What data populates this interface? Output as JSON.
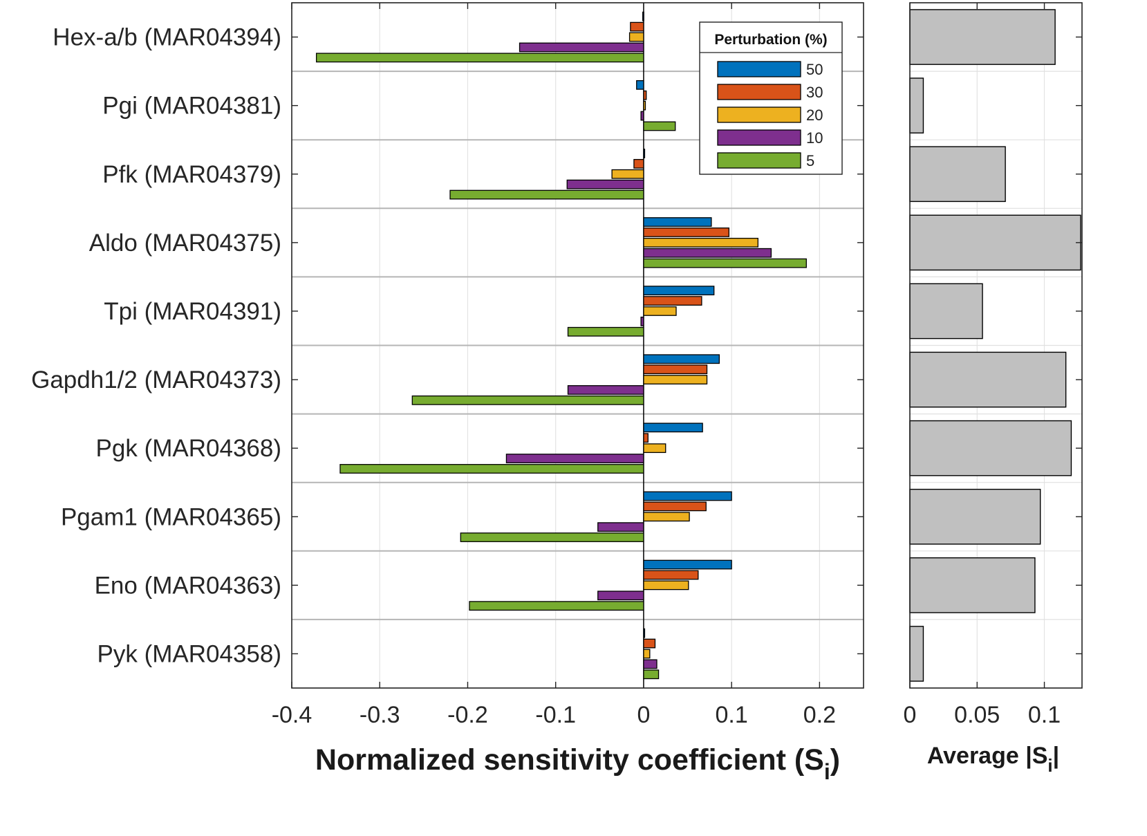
{
  "chart_data": [
    {
      "type": "bar",
      "orientation": "horizontal",
      "categories": [
        "Hex-a/b (MAR04394)",
        "Pgi (MAR04381)",
        "Pfk (MAR04379)",
        "Aldo (MAR04375)",
        "Tpi (MAR04391)",
        "Gapdh1/2 (MAR04373)",
        "Pgk (MAR04368)",
        "Pgam1 (MAR04365)",
        "Eno (MAR04363)",
        "Pyk (MAR04358)"
      ],
      "series": [
        {
          "name": "50",
          "color": "#0072BD",
          "values": [
            -0.001,
            -0.008,
            0.0,
            0.077,
            0.08,
            0.086,
            0.067,
            0.1,
            0.1,
            0.001
          ]
        },
        {
          "name": "30",
          "color": "#D95319",
          "values": [
            -0.015,
            0.003,
            -0.011,
            0.097,
            0.066,
            0.072,
            0.005,
            0.071,
            0.062,
            0.013
          ]
        },
        {
          "name": "20",
          "color": "#EDB120",
          "values": [
            -0.016,
            0.002,
            -0.036,
            0.13,
            0.037,
            0.072,
            0.025,
            0.052,
            0.051,
            0.007
          ]
        },
        {
          "name": "10",
          "color": "#7E2F8E",
          "values": [
            -0.141,
            -0.003,
            -0.087,
            0.145,
            -0.003,
            -0.086,
            -0.156,
            -0.052,
            -0.052,
            0.015
          ]
        },
        {
          "name": "5",
          "color": "#77AC30",
          "values": [
            -0.372,
            0.036,
            -0.22,
            0.185,
            -0.086,
            -0.263,
            -0.345,
            -0.208,
            -0.198,
            0.017
          ]
        }
      ],
      "xlim": [
        -0.4,
        0.25
      ],
      "xticks": [
        "-0.4",
        "-0.3",
        "-0.2",
        "-0.1",
        "0",
        "0.1",
        "0.2"
      ],
      "xtick_values": [
        -0.4,
        -0.3,
        -0.2,
        -0.1,
        0,
        0.1,
        0.2
      ],
      "xlabel": "Normalized sensitivity coefficient (S",
      "xlabel_sub": "i",
      "xlabel_end": ")",
      "legend_title": "Perturbation (%)",
      "legend_position": "top-right",
      "grid": true
    },
    {
      "type": "bar",
      "orientation": "horizontal",
      "categories": [
        "Hex-a/b (MAR04394)",
        "Pgi (MAR04381)",
        "Pfk (MAR04379)",
        "Aldo (MAR04375)",
        "Tpi (MAR04391)",
        "Gapdh1/2 (MAR04373)",
        "Pgk (MAR04368)",
        "Pgam1 (MAR04365)",
        "Eno (MAR04363)",
        "Pyk (MAR04358)"
      ],
      "values": [
        0.108,
        0.01,
        0.071,
        0.127,
        0.054,
        0.116,
        0.12,
        0.097,
        0.093,
        0.01
      ],
      "color": "#C0C0C0",
      "xlim": [
        0,
        0.128
      ],
      "xticks": [
        "0",
        "0.05",
        "0.1"
      ],
      "xtick_values": [
        0,
        0.05,
        0.1
      ],
      "xlabel": "Average |S",
      "xlabel_sub": "i",
      "xlabel_end": "|",
      "grid": true
    }
  ]
}
